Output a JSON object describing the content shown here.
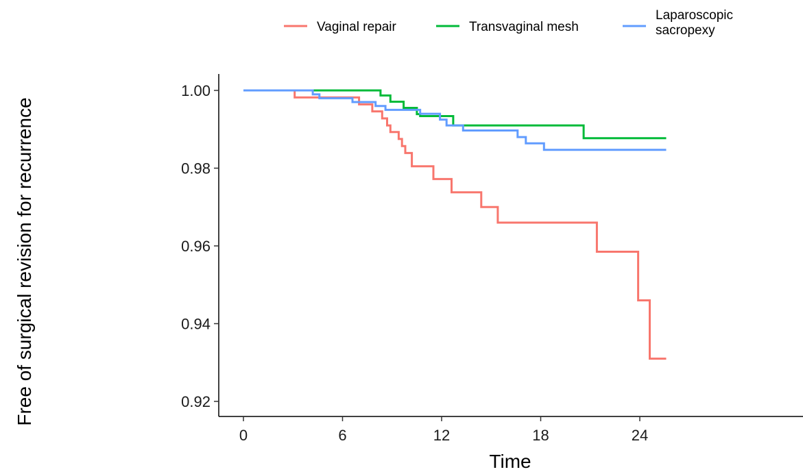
{
  "chart_data": {
    "type": "line",
    "xlabel": "Time",
    "ylabel": "Free of surgical revision for recurrence",
    "xlim": [
      0,
      25.6
    ],
    "ylim": [
      0.916,
      1.003
    ],
    "x_ticks": [
      {
        "value": 0,
        "label": "0"
      },
      {
        "value": 6,
        "label": "6"
      },
      {
        "value": 12,
        "label": "12"
      },
      {
        "value": 18,
        "label": "18"
      },
      {
        "value": 24,
        "label": "24"
      }
    ],
    "y_ticks": [
      {
        "value": 0.92,
        "label": "0.92"
      },
      {
        "value": 0.94,
        "label": "0.94"
      },
      {
        "value": 0.96,
        "label": "0.96"
      },
      {
        "value": 0.98,
        "label": "0.98"
      },
      {
        "value": 1.0,
        "label": "1.00"
      }
    ],
    "grid": false,
    "legend_position": "top",
    "series": [
      {
        "name": "Vaginal repair",
        "color": "#F8766D",
        "step": true,
        "points": [
          [
            0,
            1.0
          ],
          [
            3.1,
            0.9982
          ],
          [
            7.0,
            0.9964
          ],
          [
            7.8,
            0.9946
          ],
          [
            8.4,
            0.9928
          ],
          [
            8.7,
            0.991
          ],
          [
            8.9,
            0.9893
          ],
          [
            9.4,
            0.9875
          ],
          [
            9.6,
            0.9857
          ],
          [
            9.8,
            0.9839
          ],
          [
            10.2,
            0.9805
          ],
          [
            11.5,
            0.9772
          ],
          [
            12.6,
            0.9738
          ],
          [
            14.4,
            0.97
          ],
          [
            15.4,
            0.966
          ],
          [
            21.4,
            0.9585
          ],
          [
            23.9,
            0.946
          ],
          [
            24.6,
            0.931
          ],
          [
            25.6,
            0.931
          ]
        ]
      },
      {
        "name": "Transvaginal mesh",
        "color": "#00BA38",
        "step": true,
        "points": [
          [
            0,
            1.0
          ],
          [
            8.3,
            0.9987
          ],
          [
            8.9,
            0.9971
          ],
          [
            9.7,
            0.9955
          ],
          [
            10.5,
            0.9939
          ],
          [
            10.7,
            0.9934
          ],
          [
            12.7,
            0.991
          ],
          [
            20.6,
            0.9877
          ],
          [
            25.6,
            0.9877
          ]
        ]
      },
      {
        "name": "Laparoscopic\nsacropexy",
        "color": "#619CFF",
        "step": true,
        "points": [
          [
            0,
            1.0
          ],
          [
            4.2,
            0.999
          ],
          [
            4.6,
            0.998
          ],
          [
            6.6,
            0.997
          ],
          [
            8.0,
            0.996
          ],
          [
            8.6,
            0.995
          ],
          [
            10.7,
            0.994
          ],
          [
            11.9,
            0.9925
          ],
          [
            12.3,
            0.991
          ],
          [
            13.3,
            0.9897
          ],
          [
            16.6,
            0.988
          ],
          [
            17.1,
            0.9864
          ],
          [
            18.2,
            0.9847
          ],
          [
            25.6,
            0.9847
          ]
        ]
      }
    ]
  }
}
